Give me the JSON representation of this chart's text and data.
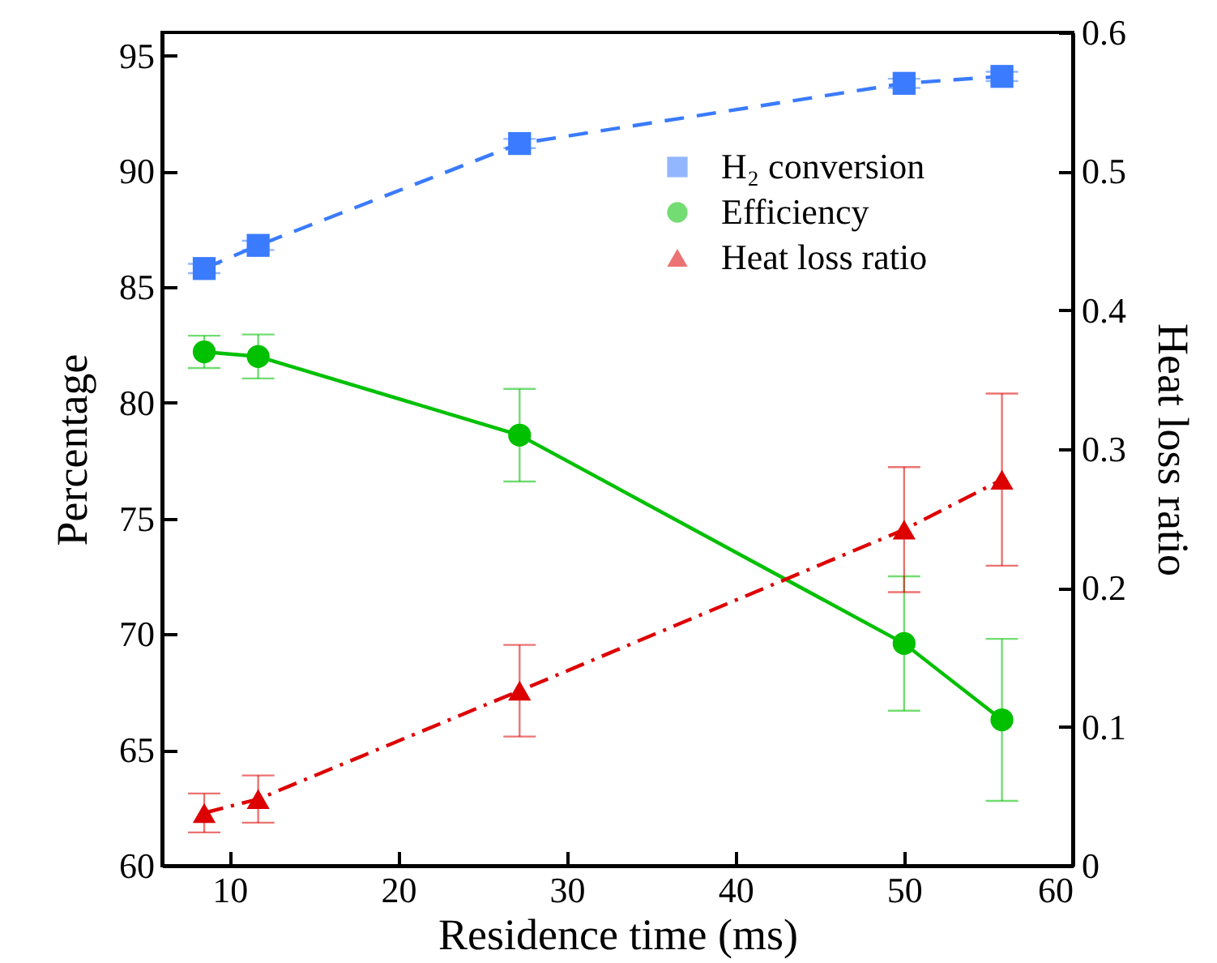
{
  "chart_data": {
    "type": "line",
    "xlabel": "Residence time (ms)",
    "ylabel": "Percentage",
    "y2label": "Heat loss ratio",
    "x": [
      8.5,
      11.7,
      27.2,
      50,
      55.8
    ],
    "series": [
      {
        "name": "H₂ conversion",
        "color": "#3a7bff",
        "values": [
          85.8,
          86.8,
          91.2,
          93.8,
          94.1
        ],
        "errors": [
          0.2,
          0.2,
          0.2,
          0.2,
          0.2
        ],
        "marker": "square",
        "line_style": "dashed"
      },
      {
        "name": "Efficiency",
        "color": "#00c000",
        "values": [
          82.2,
          82.0,
          78.6,
          69.6,
          66.3
        ],
        "errors": [
          0.7,
          0.95,
          2.0,
          2.9,
          3.5
        ],
        "marker": "circle",
        "line_style": "solid"
      },
      {
        "name": "Heat loss ratio",
        "color": "#dd0000",
        "axis": "y2",
        "values": [
          0.038,
          0.048,
          0.126,
          0.242,
          0.278
        ],
        "errors": [
          0.014,
          0.017,
          0.033,
          0.045,
          0.062
        ],
        "marker": "triangle",
        "line_style": "dashdot"
      }
    ],
    "xlim": [
      6,
      60
    ],
    "xticks": [
      10,
      20,
      30,
      40,
      50,
      60
    ],
    "ylim": [
      60,
      96
    ],
    "yticks": [
      60,
      65,
      70,
      75,
      80,
      85,
      90,
      95
    ],
    "y2lim": [
      0,
      0.6
    ],
    "y2ticks": [
      0,
      0.1,
      0.2,
      0.3,
      0.4,
      0.5,
      0.6
    ],
    "grid": false,
    "legend": "top right"
  }
}
